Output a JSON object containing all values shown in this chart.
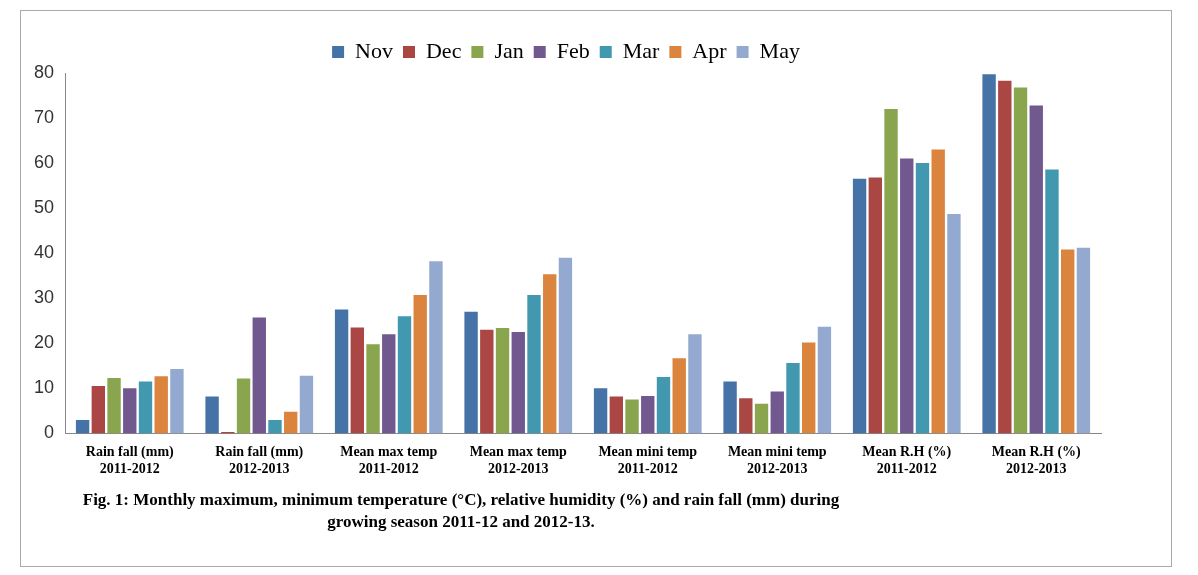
{
  "chart_data": {
    "type": "bar",
    "categories": [
      "Rain fall (mm)\n2011-2012",
      "Rain fall (mm)\n2012-2013",
      "Mean max temp\n2011-2012",
      "Mean max temp\n2012-2013",
      "Mean mini temp\n2011-2012",
      "Mean mini temp\n2012-2013",
      "Mean R.H (%)\n2011-2012",
      "Mean R.H (%)\n2012-2013"
    ],
    "series": [
      {
        "name": "Nov",
        "color": "#4572a7",
        "values": [
          3,
          8.2,
          27.5,
          27,
          10,
          11.5,
          56.5,
          79.7
        ]
      },
      {
        "name": "Dec",
        "color": "#aa4643",
        "values": [
          10.5,
          0.3,
          23.5,
          23,
          8.2,
          7.8,
          56.8,
          78.3
        ]
      },
      {
        "name": "Jan",
        "color": "#89a54e",
        "values": [
          12.3,
          12.2,
          19.8,
          23.4,
          7.5,
          6.6,
          72,
          76.8
        ]
      },
      {
        "name": "Feb",
        "color": "#71588f",
        "values": [
          10,
          25.7,
          22,
          22.5,
          8.3,
          9.3,
          61,
          72.8
        ]
      },
      {
        "name": "Mar",
        "color": "#4198af",
        "values": [
          11.5,
          3,
          26,
          30.7,
          12.5,
          15.6,
          60,
          58.6
        ]
      },
      {
        "name": "Apr",
        "color": "#db843d",
        "values": [
          12.7,
          4.8,
          30.7,
          35.3,
          16.7,
          20.2,
          63,
          40.8
        ]
      },
      {
        "name": "May",
        "color": "#93a9cf",
        "values": [
          14.3,
          12.8,
          38.2,
          39,
          22,
          23.7,
          48.7,
          41.2
        ]
      }
    ],
    "ylim": [
      0,
      80
    ],
    "yticks": [
      0,
      10,
      20,
      30,
      40,
      50,
      60,
      70,
      80
    ],
    "grid": false,
    "legend": "top",
    "annotations": [
      "Fig. 1: Monthly maximum, minimum temperature (°C), relative humidity (%) and rain fall (mm) during growing season 2011-12 and 2012-13."
    ]
  }
}
